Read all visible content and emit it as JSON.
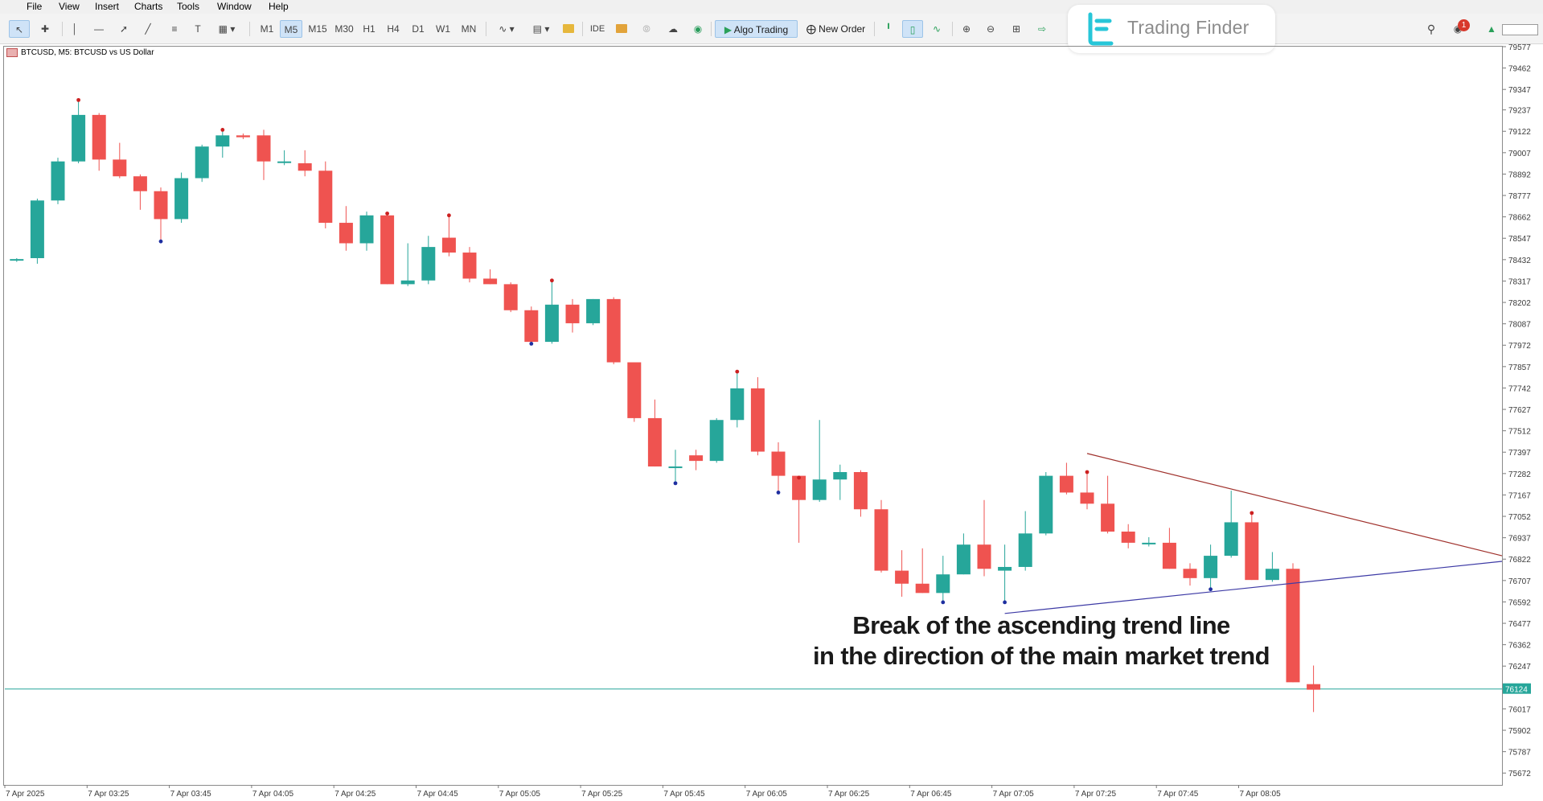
{
  "menu": [
    "File",
    "View",
    "Insert",
    "Charts",
    "Tools",
    "Window",
    "Help"
  ],
  "toolbar": {
    "timeframes": [
      "M1",
      "M5",
      "M15",
      "M30",
      "H1",
      "H4",
      "D1",
      "W1",
      "MN"
    ],
    "active_timeframe": "M5",
    "ide_label": "IDE",
    "algo_label": "Algo Trading",
    "order_label": "New Order",
    "notification_count": "1"
  },
  "icons": [
    "cursor-icon",
    "crosshair-icon",
    "vertical-line-icon",
    "horizontal-line-icon",
    "trendline-icon",
    "channel-icon",
    "fibonacci-icon",
    "text-icon",
    "shapes-icon",
    "indicator-icon",
    "template-icon",
    "market-icon",
    "signal-icon",
    "vps-icon",
    "cloud-icon",
    "bar-chart-icon",
    "candle-chart-icon",
    "line-chart-icon",
    "zoom-in-icon",
    "zoom-out-icon",
    "grid-icon",
    "autoscroll-icon",
    "search-icon",
    "chat-icon",
    "signal-strength-icon"
  ],
  "logo": {
    "text": "Trading Finder"
  },
  "chart": {
    "label": "BTCUSD, M5:  BTCUSD vs US Dollar",
    "current_price": "76124",
    "annotation_line1": "Break of the ascending trend line",
    "annotation_line2": "in the direction of the main market trend"
  },
  "colors": {
    "bull": "#26a69a",
    "bear": "#ef5350",
    "top_trendline": "#a0322d",
    "bottom_trendline": "#3d3aa5",
    "price_line": "#26a69a",
    "top_marker": "#cc2020",
    "bottom_marker": "#1f2fa0",
    "active_button": "#cfe3f7"
  },
  "chart_data": {
    "type": "candlestick",
    "symbol": "BTCUSD",
    "timeframe": "M5",
    "y_ticks": [
      "79577",
      "79462",
      "79347",
      "79237",
      "79122",
      "79007",
      "78892",
      "78777",
      "78662",
      "78547",
      "78432",
      "78317",
      "78202",
      "78087",
      "77972",
      "77857",
      "77742",
      "77627",
      "77512",
      "77397",
      "77282",
      "77167",
      "77052",
      "76937",
      "76822",
      "76707",
      "76592",
      "76477",
      "76362",
      "76247",
      "76132",
      "76017",
      "75902",
      "75787",
      "75672"
    ],
    "x_ticks": [
      "7 Apr 2025",
      "7 Apr 03:25",
      "7 Apr 03:45",
      "7 Apr 04:05",
      "7 Apr 04:25",
      "7 Apr 04:45",
      "7 Apr 05:05",
      "7 Apr 05:25",
      "7 Apr 05:45",
      "7 Apr 06:05",
      "7 Apr 06:25",
      "7 Apr 06:45",
      "7 Apr 07:05",
      "7 Apr 07:25",
      "7 Apr 07:45",
      "7 Apr 08:05"
    ],
    "y_range": [
      75610,
      79600
    ],
    "candles": [
      {
        "o": 78430,
        "h": 78440,
        "l": 78420,
        "c": 78435
      },
      {
        "o": 78440,
        "h": 78760,
        "l": 78410,
        "c": 78750
      },
      {
        "o": 78750,
        "h": 78980,
        "l": 78730,
        "c": 78960
      },
      {
        "o": 78960,
        "h": 79290,
        "l": 78950,
        "c": 79210
      },
      {
        "o": 79210,
        "h": 79220,
        "l": 78910,
        "c": 78970
      },
      {
        "o": 78970,
        "h": 79060,
        "l": 78870,
        "c": 78880
      },
      {
        "o": 78880,
        "h": 78890,
        "l": 78700,
        "c": 78800
      },
      {
        "o": 78800,
        "h": 78820,
        "l": 78530,
        "c": 78650
      },
      {
        "o": 78650,
        "h": 78900,
        "l": 78630,
        "c": 78870
      },
      {
        "o": 78870,
        "h": 79050,
        "l": 78850,
        "c": 79040
      },
      {
        "o": 79040,
        "h": 79130,
        "l": 78980,
        "c": 79100
      },
      {
        "o": 79100,
        "h": 79110,
        "l": 79080,
        "c": 79090
      },
      {
        "o": 79100,
        "h": 79130,
        "l": 78860,
        "c": 78960
      },
      {
        "o": 78960,
        "h": 79020,
        "l": 78940,
        "c": 78960
      },
      {
        "o": 78950,
        "h": 79020,
        "l": 78880,
        "c": 78910
      },
      {
        "o": 78910,
        "h": 78960,
        "l": 78600,
        "c": 78630
      },
      {
        "o": 78630,
        "h": 78720,
        "l": 78480,
        "c": 78520
      },
      {
        "o": 78520,
        "h": 78690,
        "l": 78480,
        "c": 78670
      },
      {
        "o": 78670,
        "h": 78680,
        "l": 78300,
        "c": 78300
      },
      {
        "o": 78300,
        "h": 78520,
        "l": 78290,
        "c": 78320
      },
      {
        "o": 78320,
        "h": 78560,
        "l": 78300,
        "c": 78500
      },
      {
        "o": 78550,
        "h": 78670,
        "l": 78450,
        "c": 78470
      },
      {
        "o": 78470,
        "h": 78500,
        "l": 78310,
        "c": 78330
      },
      {
        "o": 78330,
        "h": 78380,
        "l": 78300,
        "c": 78300
      },
      {
        "o": 78300,
        "h": 78310,
        "l": 78150,
        "c": 78160
      },
      {
        "o": 78160,
        "h": 78180,
        "l": 77980,
        "c": 77990
      },
      {
        "o": 77990,
        "h": 78320,
        "l": 77980,
        "c": 78190
      },
      {
        "o": 78190,
        "h": 78220,
        "l": 78040,
        "c": 78090
      },
      {
        "o": 78090,
        "h": 78220,
        "l": 78080,
        "c": 78220
      },
      {
        "o": 78220,
        "h": 78230,
        "l": 77870,
        "c": 77880
      },
      {
        "o": 77880,
        "h": 77880,
        "l": 77560,
        "c": 77580
      },
      {
        "o": 77580,
        "h": 77680,
        "l": 77320,
        "c": 77320
      },
      {
        "o": 77320,
        "h": 77410,
        "l": 77230,
        "c": 77320
      },
      {
        "o": 77380,
        "h": 77410,
        "l": 77300,
        "c": 77350
      },
      {
        "o": 77350,
        "h": 77580,
        "l": 77340,
        "c": 77570
      },
      {
        "o": 77570,
        "h": 77830,
        "l": 77530,
        "c": 77740
      },
      {
        "o": 77740,
        "h": 77800,
        "l": 77380,
        "c": 77400
      },
      {
        "o": 77400,
        "h": 77450,
        "l": 77180,
        "c": 77270
      },
      {
        "o": 77270,
        "h": 77260,
        "l": 76910,
        "c": 77140
      },
      {
        "o": 77140,
        "h": 77570,
        "l": 77130,
        "c": 77250
      },
      {
        "o": 77250,
        "h": 77330,
        "l": 77140,
        "c": 77290
      },
      {
        "o": 77290,
        "h": 77300,
        "l": 77050,
        "c": 77090
      },
      {
        "o": 77090,
        "h": 77140,
        "l": 76750,
        "c": 76760
      },
      {
        "o": 76760,
        "h": 76870,
        "l": 76620,
        "c": 76690
      },
      {
        "o": 76690,
        "h": 76880,
        "l": 76650,
        "c": 76640
      },
      {
        "o": 76640,
        "h": 76840,
        "l": 76590,
        "c": 76740
      },
      {
        "o": 76740,
        "h": 76960,
        "l": 76740,
        "c": 76900
      },
      {
        "o": 76900,
        "h": 77140,
        "l": 76730,
        "c": 76770
      },
      {
        "o": 76760,
        "h": 76900,
        "l": 76590,
        "c": 76780
      },
      {
        "o": 76780,
        "h": 77080,
        "l": 76760,
        "c": 76960
      },
      {
        "o": 76960,
        "h": 77290,
        "l": 76950,
        "c": 77270
      },
      {
        "o": 77270,
        "h": 77340,
        "l": 77170,
        "c": 77180
      },
      {
        "o": 77180,
        "h": 77290,
        "l": 77090,
        "c": 77120
      },
      {
        "o": 77120,
        "h": 77270,
        "l": 76960,
        "c": 76970
      },
      {
        "o": 76970,
        "h": 77010,
        "l": 76880,
        "c": 76910
      },
      {
        "o": 76910,
        "h": 76940,
        "l": 76890,
        "c": 76910
      },
      {
        "o": 76910,
        "h": 76990,
        "l": 76770,
        "c": 76770
      },
      {
        "o": 76770,
        "h": 76800,
        "l": 76680,
        "c": 76720
      },
      {
        "o": 76720,
        "h": 76900,
        "l": 76660,
        "c": 76840
      },
      {
        "o": 76840,
        "h": 77190,
        "l": 76830,
        "c": 77020
      },
      {
        "o": 77020,
        "h": 77070,
        "l": 76710,
        "c": 76710
      },
      {
        "o": 76710,
        "h": 76860,
        "l": 76700,
        "c": 76770
      },
      {
        "o": 76770,
        "h": 76800,
        "l": 76160,
        "c": 76160
      },
      {
        "o": 76150,
        "h": 76250,
        "l": 76000,
        "c": 76120
      }
    ],
    "x_slots": [
      0,
      1,
      2,
      3,
      4,
      5,
      6,
      7,
      8,
      9,
      10,
      11,
      12,
      13,
      14,
      15,
      16,
      17,
      18,
      19,
      20,
      21,
      22,
      23,
      24,
      25,
      26,
      27,
      28,
      29,
      30,
      31,
      32,
      33,
      34,
      35,
      36,
      37,
      38,
      39,
      40,
      41,
      42,
      43,
      44,
      45,
      46,
      47,
      48,
      49,
      50,
      51,
      52,
      53,
      54,
      55,
      56,
      57,
      58,
      59,
      60,
      61,
      62,
      63
    ],
    "swing_highs": [
      3,
      10,
      18,
      21,
      26,
      35,
      38,
      52,
      60
    ],
    "swing_lows": [
      7,
      25,
      32,
      37,
      45,
      48,
      58
    ],
    "trendlines": [
      {
        "name": "descending",
        "x1": 52,
        "y1": 77390,
        "x2": 74.5,
        "y2": 76840
      },
      {
        "name": "ascending",
        "x1": 48,
        "y1": 76530,
        "x2": 74.5,
        "y2": 76810
      }
    ],
    "price_line": 76124
  }
}
